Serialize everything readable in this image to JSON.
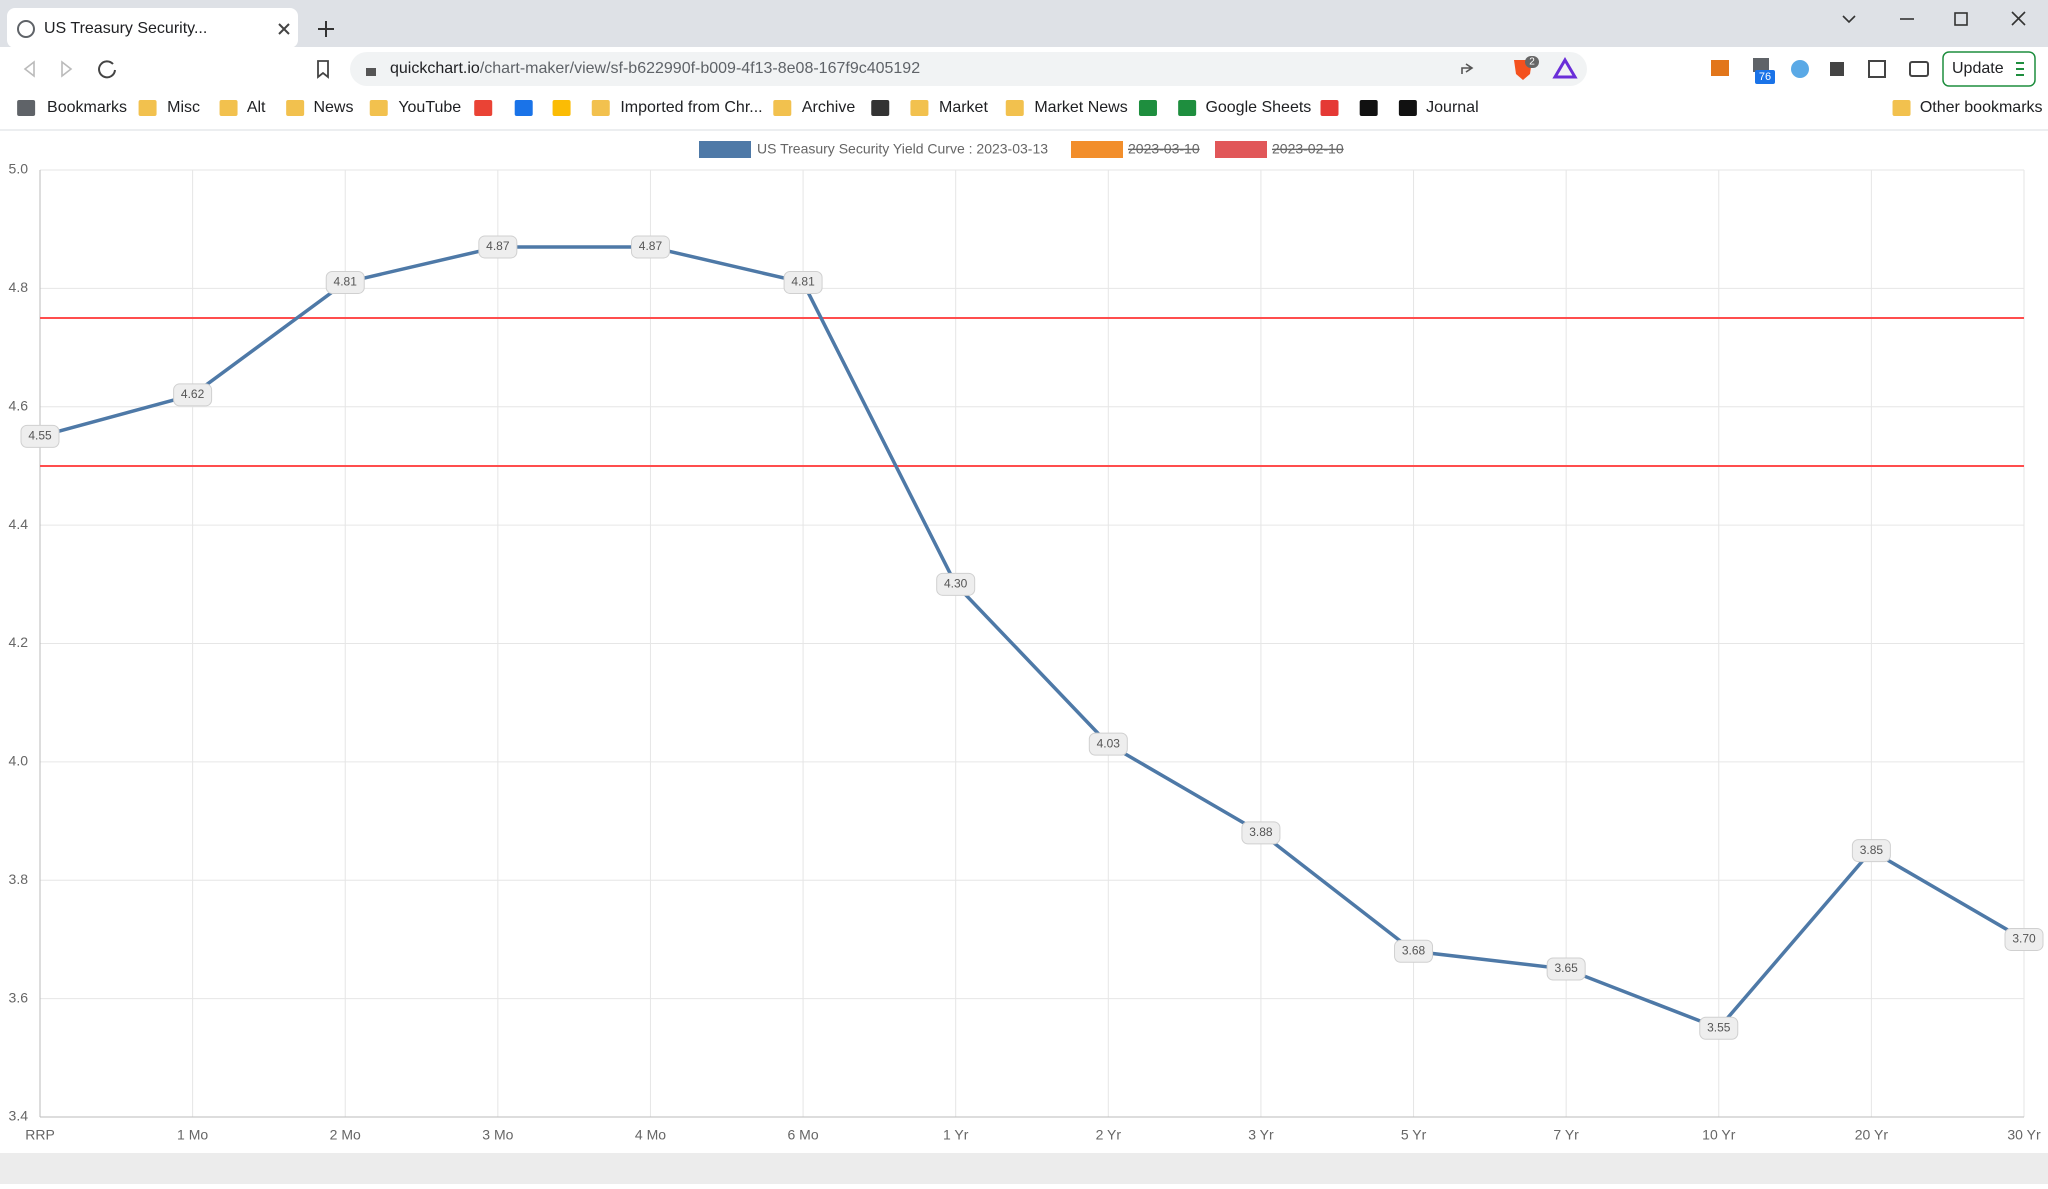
{
  "browser": {
    "tab_title": "US Treasury Security...",
    "url_host": "quickchart.io",
    "url_path": "/chart-maker/view/sf-b622990f-b009-4f13-8e08-167f9c405192",
    "update_button": "Update",
    "badges": [
      "2",
      "76"
    ],
    "bookmarks": [
      "Bookmarks",
      "Misc",
      "Alt",
      "News",
      "YouTube",
      "Imported from Chr...",
      "Archive",
      "Market",
      "Market News",
      "Google Sheets",
      "Journal"
    ],
    "other_bookmarks": "Other bookmarks"
  },
  "chart_data": {
    "type": "line",
    "categories": [
      "RRP",
      "1 Mo",
      "2 Mo",
      "3 Mo",
      "4 Mo",
      "6 Mo",
      "1 Yr",
      "2 Yr",
      "3 Yr",
      "5 Yr",
      "7 Yr",
      "10 Yr",
      "20 Yr",
      "30 Yr"
    ],
    "series": [
      {
        "name": "US Treasury Security Yield Curve : 2023-03-13",
        "color": "#4e79a7",
        "values": [
          4.55,
          4.62,
          4.81,
          4.87,
          4.87,
          4.81,
          4.3,
          4.03,
          3.88,
          3.68,
          3.65,
          3.55,
          3.85,
          3.7
        ],
        "value_labels": [
          "4.55",
          "4.62",
          "4.81",
          "4.87",
          "4.87",
          "4.81",
          "4.30",
          "4.03",
          "3.88",
          "3.68",
          "3.65",
          "3.55",
          "3.85",
          "3.70"
        ]
      },
      {
        "name": "2023-03-10",
        "color": "#f28e2b",
        "hidden": true
      },
      {
        "name": "2023-02-10",
        "color": "#e15759",
        "hidden": true
      }
    ],
    "annotation_lines": [
      {
        "value": 4.75,
        "color": "#ff4d4d"
      },
      {
        "value": 4.5,
        "color": "#ff4d4d"
      }
    ],
    "ylim": [
      3.4,
      5.0
    ],
    "yticks": [
      3.4,
      3.6,
      3.8,
      {
        "value": 4.0,
        "label": "4.0"
      },
      4.2,
      4.4,
      4.6,
      4.8,
      {
        "value": 5.0,
        "label": "5.0"
      }
    ],
    "grid": true,
    "legend": "top"
  }
}
